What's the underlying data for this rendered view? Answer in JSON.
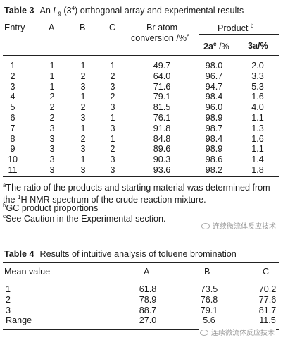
{
  "table3": {
    "label": "Table 3",
    "title_prefix": "An ",
    "title_L": "L",
    "title_L_sub": "9",
    "title_open": " (",
    "title_base": "3",
    "title_exp": "4",
    "title_suffix": ") orthogonal array and experimental results",
    "headers": {
      "entry": "Entry",
      "a": "A",
      "b": "B",
      "c": "C",
      "br_line1": "Br atom",
      "br_line2": "conversion /%",
      "br_sup": "a",
      "product": "Product",
      "product_sup": "b",
      "col_2a": "2a",
      "col_2a_sup": "c",
      "col_2a_unit": " /%",
      "col_3a": "3a/%"
    },
    "rows": [
      {
        "entry": "1",
        "a": "1",
        "b": "1",
        "c": "1",
        "conv": "49.7",
        "p2a": "98.0",
        "p3a": "2.0"
      },
      {
        "entry": "2",
        "a": "1",
        "b": "2",
        "c": "2",
        "conv": "64.0",
        "p2a": "96.7",
        "p3a": "3.3"
      },
      {
        "entry": "3",
        "a": "1",
        "b": "3",
        "c": "3",
        "conv": "71.6",
        "p2a": "94.7",
        "p3a": "5.3"
      },
      {
        "entry": "4",
        "a": "2",
        "b": "1",
        "c": "2",
        "conv": "79.1",
        "p2a": "98.4",
        "p3a": "1.6"
      },
      {
        "entry": "5",
        "a": "2",
        "b": "2",
        "c": "3",
        "conv": "81.5",
        "p2a": "96.0",
        "p3a": "4.0"
      },
      {
        "entry": "6",
        "a": "2",
        "b": "3",
        "c": "1",
        "conv": "76.1",
        "p2a": "98.9",
        "p3a": "1.1"
      },
      {
        "entry": "7",
        "a": "3",
        "b": "1",
        "c": "3",
        "conv": "91.8",
        "p2a": "98.7",
        "p3a": "1.3"
      },
      {
        "entry": "8",
        "a": "3",
        "b": "2",
        "c": "1",
        "conv": "84.8",
        "p2a": "98.4",
        "p3a": "1.6"
      },
      {
        "entry": "9",
        "a": "3",
        "b": "3",
        "c": "2",
        "conv": "89.6",
        "p2a": "98.9",
        "p3a": "1.1"
      },
      {
        "entry": "10",
        "a": "3",
        "b": "1",
        "c": "3",
        "conv": "90.3",
        "p2a": "98.6",
        "p3a": "1.4"
      },
      {
        "entry": "11",
        "a": "3",
        "b": "3",
        "c": "3",
        "conv": "93.6",
        "p2a": "98.2",
        "p3a": "1.8"
      }
    ],
    "footnotes": {
      "a_mark": "a",
      "a_text_1": "The ratio of the products and starting material was determined from the ",
      "a_iso": "1",
      "a_text_2": "H NMR spectrum of the crude reaction mixture.",
      "b_mark": "b",
      "b_text": "GC product proportions",
      "c_mark": "c",
      "c_text": "See Caution in the Experimental section."
    }
  },
  "table4": {
    "label": "Table 4",
    "title": "Results of intuitive analysis of toluene bromination",
    "headers": {
      "mean": "Mean value",
      "a": "A",
      "b": "B",
      "c": "C"
    },
    "rows": [
      {
        "label": "1",
        "a": "61.8",
        "b": "73.5",
        "c": "70.2"
      },
      {
        "label": "2",
        "a": "78.9",
        "b": "76.8",
        "c": "77.6"
      },
      {
        "label": "3",
        "a": "88.7",
        "b": "79.1",
        "c": "81.7"
      },
      {
        "label": "Range",
        "a": "27.0",
        "b": "5.6",
        "c": "11.5"
      }
    ]
  },
  "watermark": {
    "text": "连续微流体反应技术"
  }
}
